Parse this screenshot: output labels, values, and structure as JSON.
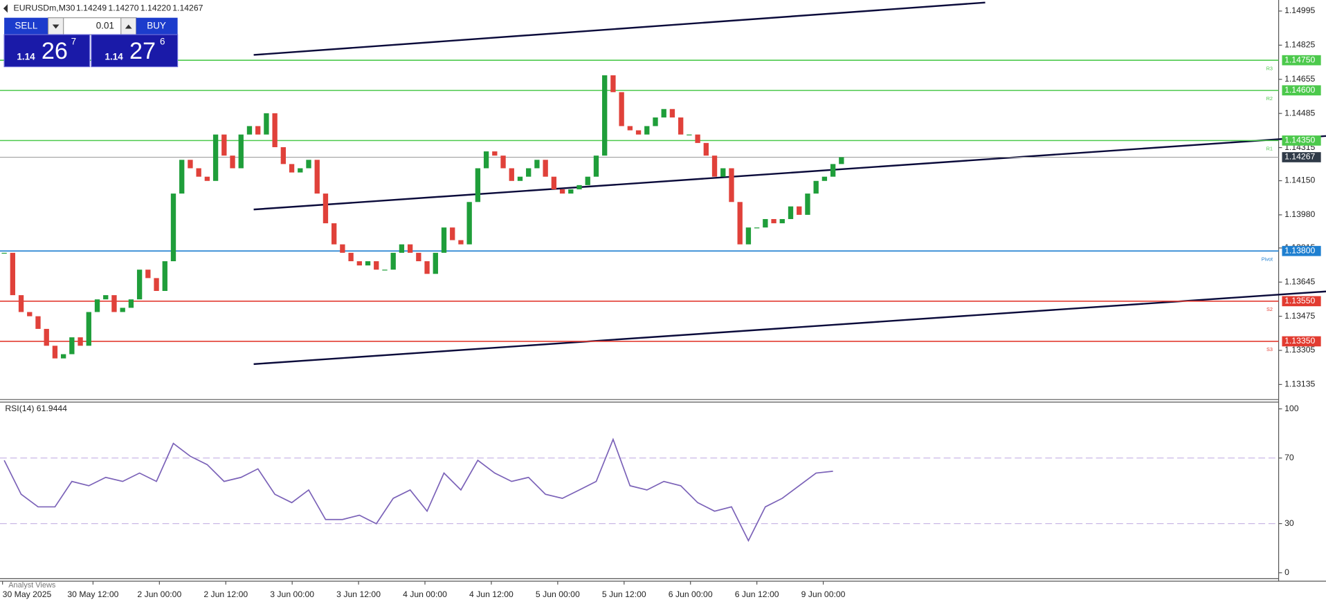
{
  "header": {
    "symbol": "EURUSDm,M30",
    "ohlc": [
      "1.14249",
      "1.14270",
      "1.14220",
      "1.14267"
    ]
  },
  "trade_panel": {
    "sell": "SELL",
    "lot": "0.01",
    "buy": "BUY",
    "bid": {
      "big": "1.14",
      "pips": "26",
      "fraction": "7"
    },
    "ask": {
      "big": "1.14",
      "pips": "27",
      "fraction": "6"
    }
  },
  "chart_data": {
    "type": "candlestick",
    "close": [
      1.13791,
      1.1358,
      1.13496,
      1.13475,
      1.13412,
      1.13328,
      1.13265,
      1.13286,
      1.1337,
      1.13328,
      1.13496,
      1.13559,
      1.1358,
      1.13496,
      1.13517,
      1.13559,
      1.13707,
      1.13665,
      1.13601,
      1.13749,
      1.14086,
      1.14254,
      1.14212,
      1.1417,
      1.14149,
      1.1438,
      1.14275,
      1.14212,
      1.1438,
      1.14422,
      1.1438,
      1.14486,
      1.14317,
      1.14233,
      1.14191,
      1.14212,
      1.14254,
      1.14086,
      1.13938,
      1.13833,
      1.13791,
      1.13749,
      1.13728,
      1.13749,
      1.13707,
      1.13707,
      1.13791,
      1.13833,
      1.13791,
      1.13749,
      1.13686,
      1.13791,
      1.13917,
      1.13854,
      1.13833,
      1.14044,
      1.14212,
      1.14296,
      1.14275,
      1.14212,
      1.14149,
      1.1417,
      1.14212,
      1.14254,
      1.1417,
      1.14107,
      1.14086,
      1.14107,
      1.14128,
      1.1417,
      1.14275,
      1.14675,
      1.14591,
      1.14422,
      1.14401,
      1.1438,
      1.14422,
      1.14465,
      1.14507,
      1.14465,
      1.1438,
      1.1438,
      1.14338,
      1.14275,
      1.1417,
      1.14212,
      1.14044,
      1.13833,
      1.13917,
      1.13917,
      1.13959,
      1.13938,
      1.13959,
      1.14022,
      1.1398,
      1.14086,
      1.14149,
      1.1417,
      1.14233,
      1.14267
    ],
    "up_color": "#1f9e3a",
    "down_color": "#e0413a",
    "ylim": [
      1.1306,
      1.1505
    ],
    "yticks": [
      1.14995,
      1.14825,
      1.14655,
      1.14485,
      1.14315,
      {
        "value": 1.1415,
        "label": "1.14150"
      },
      {
        "value": 1.1398,
        "label": "1.13980"
      },
      1.13815,
      1.13645,
      1.13475,
      1.13305,
      1.13135
    ],
    "levels": [
      {
        "value": 1.1475,
        "label": "1.14750",
        "name": "R3",
        "color": "#4cc94c"
      },
      {
        "value": 1.146,
        "label": "1.14600",
        "name": "R2",
        "color": "#4cc94c"
      },
      {
        "value": 1.1435,
        "label": "1.14350",
        "name": "R1",
        "color": "#4cc94c"
      },
      {
        "value": 1.138,
        "label": "1.13800",
        "name": "Pivot",
        "color": "#1e7fd0"
      },
      {
        "value": 1.1355,
        "label": "1.13550",
        "name": "S2",
        "color": "#e23b30"
      },
      {
        "value": 1.1335,
        "label": "1.13350",
        "name": "S3",
        "color": "#e23b30"
      }
    ],
    "current": {
      "value": 1.14267,
      "label": "1.14267",
      "color": "#2f3a48"
    },
    "x_labels": [
      "30 May 2025",
      "30 May 12:00",
      "2 Jun 00:00",
      "2 Jun 12:00",
      "3 Jun 00:00",
      "3 Jun 12:00",
      "4 Jun 00:00",
      "4 Jun 12:00",
      "5 Jun 00:00",
      "5 Jun 12:00",
      "6 Jun 00:00",
      "6 Jun 12:00",
      "9 Jun 00:00"
    ],
    "rsi": {
      "title": "RSI(14) 61.9444",
      "color": "#7b62b8",
      "values": [
        68.6,
        47.9,
        40.2,
        40.2,
        55.7,
        53.1,
        58.2,
        55.7,
        60.8,
        55.7,
        78.9,
        71.1,
        66.0,
        55.7,
        58.2,
        63.4,
        47.9,
        42.8,
        50.5,
        32.5,
        32.5,
        35.1,
        29.9,
        45.4,
        50.5,
        37.6,
        60.8,
        50.5,
        68.6,
        60.8,
        55.7,
        58.2,
        47.9,
        45.4,
        50.5,
        55.7,
        81.4,
        53.1,
        50.5,
        55.7,
        53.1,
        42.8,
        37.6,
        40.2,
        19.6,
        40.2,
        45.4,
        53.1,
        60.8,
        61.94
      ],
      "ylim": [
        0,
        100
      ],
      "yticks": [
        0,
        30,
        70,
        100
      ]
    },
    "footer_tab": "Analyst Views"
  }
}
